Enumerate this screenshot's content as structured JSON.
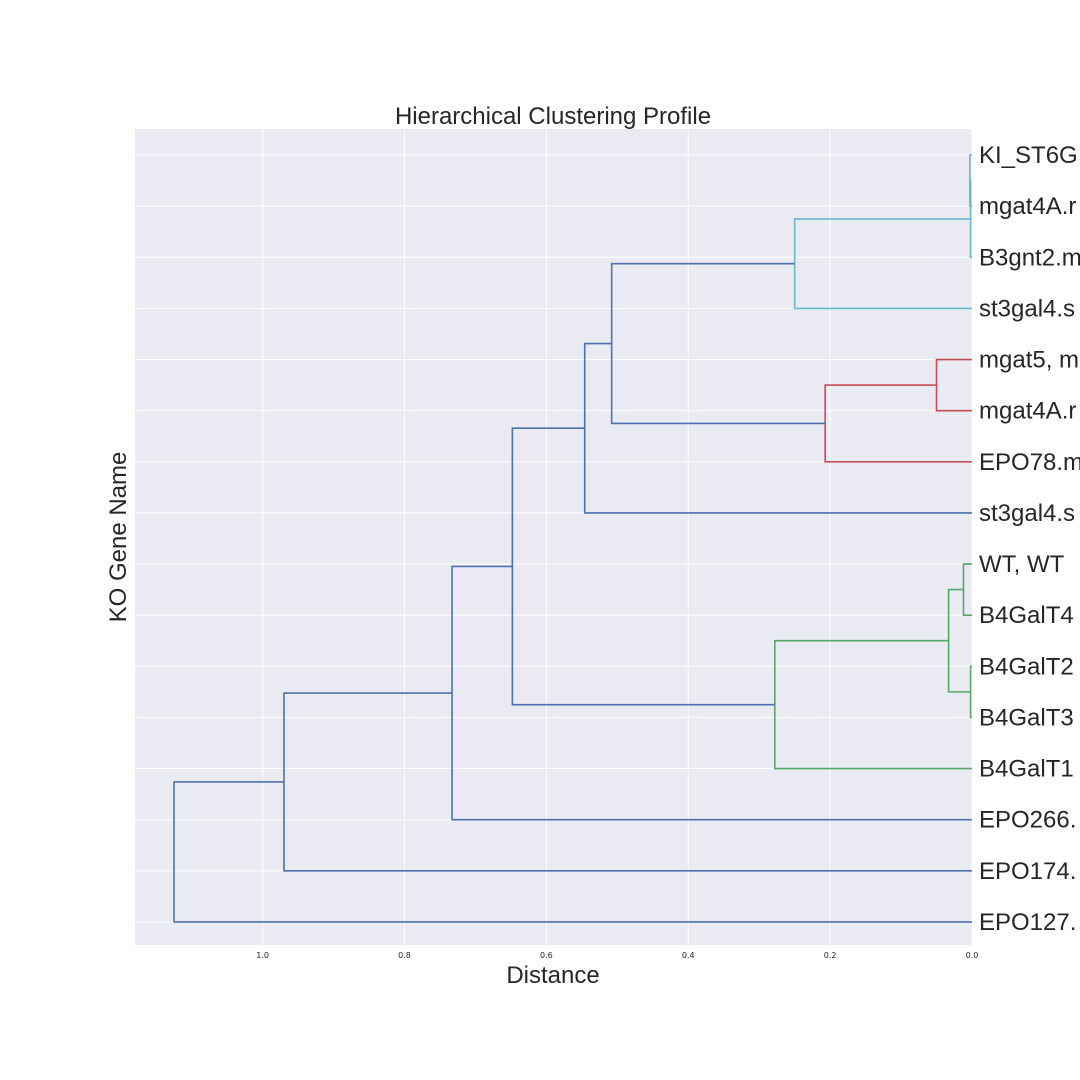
{
  "chart_data": {
    "type": "dendrogram",
    "orientation": "left",
    "title": "Hierarchical Clustering Profile",
    "xlabel": "Distance",
    "ylabel": "KO Gene Name",
    "xlim": [
      1.18,
      0.0
    ],
    "x_ticks": [
      1.0,
      0.8,
      0.6,
      0.4,
      0.2,
      0.0
    ],
    "x_tick_labels": [
      "1.0",
      "0.8",
      "0.6",
      "0.4",
      "0.2",
      "0.0"
    ],
    "grid": true,
    "background": "#eaeaf2",
    "leaves": [
      "KI_ST6G",
      "mgat4A.r",
      "B3gnt2.m",
      "st3gal4.s",
      "mgat5, m",
      "mgat4A.r",
      "EPO78.m",
      "st3gal4.s",
      "WT, WT",
      "B4GalT4",
      "B4GalT2",
      "B4GalT3",
      "B4GalT1",
      "EPO266.",
      "EPO174.",
      "EPO127."
    ],
    "links": [
      {
        "id": "n0",
        "children": [
          "L0",
          "L1"
        ],
        "height": 0.003,
        "color": "#66b8d3"
      },
      {
        "id": "n1",
        "children": [
          "n0",
          "L2"
        ],
        "height": 0.002,
        "color": "#66b8d3"
      },
      {
        "id": "n2",
        "children": [
          "n1",
          "L3"
        ],
        "height": 0.25,
        "color": "#66b8d3"
      },
      {
        "id": "n3",
        "children": [
          "L4",
          "L5"
        ],
        "height": 0.05,
        "color": "#c44e52"
      },
      {
        "id": "n4",
        "children": [
          "n3",
          "L6"
        ],
        "height": 0.207,
        "color": "#c44e52"
      },
      {
        "id": "n5",
        "children": [
          "n2",
          "n4"
        ],
        "height": 0.508,
        "color": "#4c72b0"
      },
      {
        "id": "n6",
        "children": [
          "n5",
          "L7"
        ],
        "height": 0.546,
        "color": "#4c72b0"
      },
      {
        "id": "n7",
        "children": [
          "L8",
          "L9"
        ],
        "height": 0.012,
        "color": "#55a868"
      },
      {
        "id": "n8",
        "children": [
          "L10",
          "L11"
        ],
        "height": 0.002,
        "color": "#55a868"
      },
      {
        "id": "n9",
        "children": [
          "n7",
          "n8"
        ],
        "height": 0.033,
        "color": "#55a868"
      },
      {
        "id": "n10",
        "children": [
          "n9",
          "L12"
        ],
        "height": 0.278,
        "color": "#55a868"
      },
      {
        "id": "n11",
        "children": [
          "n6",
          "n10"
        ],
        "height": 0.648,
        "color": "#4c72b0"
      },
      {
        "id": "n12",
        "children": [
          "n11",
          "L13"
        ],
        "height": 0.733,
        "color": "#4c72b0"
      },
      {
        "id": "n13",
        "children": [
          "n12",
          "L14"
        ],
        "height": 0.97,
        "color": "#4c72b0"
      },
      {
        "id": "n14",
        "children": [
          "n13",
          "L15"
        ],
        "height": 1.125,
        "color": "#4c72b0"
      }
    ]
  }
}
